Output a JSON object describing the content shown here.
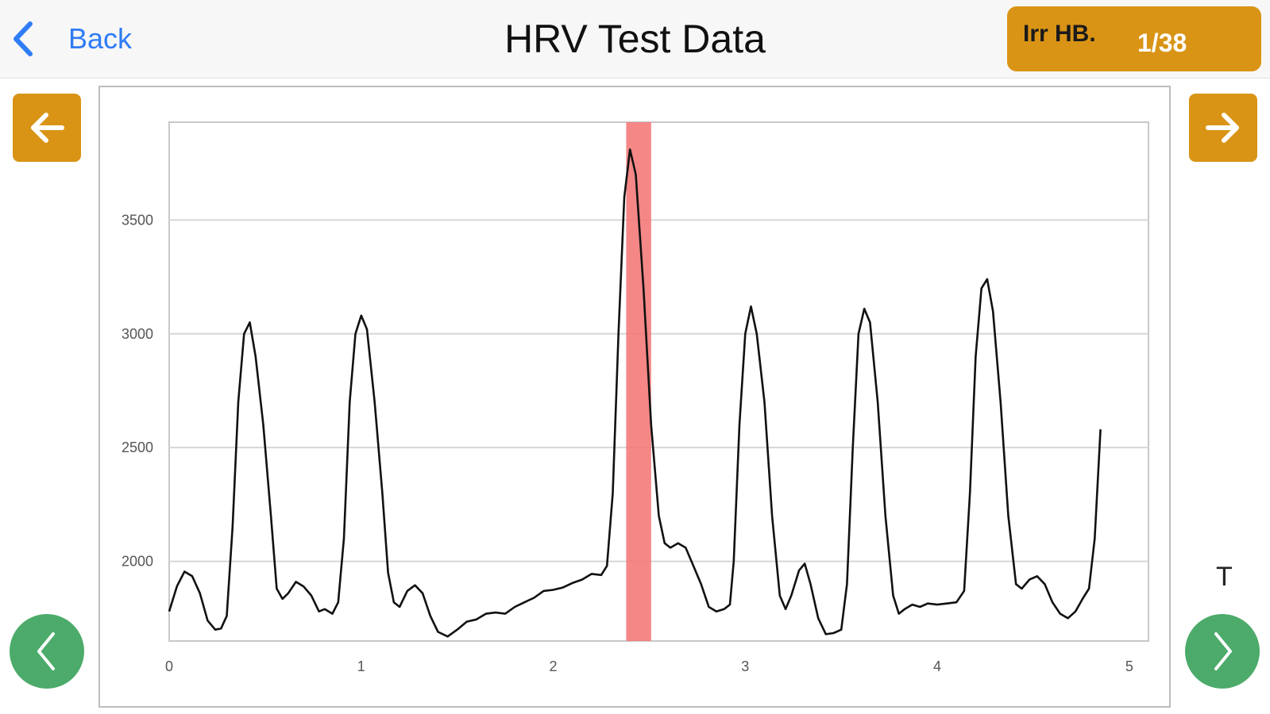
{
  "header": {
    "back_label": "Back",
    "title": "HRV Test Data",
    "irr_label": "Irr HB.",
    "irr_value": "1/38"
  },
  "overlay": {
    "t_label": "T"
  },
  "icons": {
    "back": "chevron-left-icon",
    "prev_square": "arrow-left-icon",
    "next_square": "arrow-right-icon",
    "prev_round": "chevron-left-icon",
    "next_round": "chevron-right-icon"
  },
  "colors": {
    "accent": "#d99416",
    "green": "#4cab6a",
    "link": "#2f7cf6",
    "highlight": "#f47a7a"
  },
  "chart_data": {
    "type": "line",
    "title": "",
    "xlabel": "",
    "ylabel": "",
    "xlim": [
      0,
      5.1
    ],
    "ylim": [
      1650,
      3930
    ],
    "x_ticks": [
      0,
      1,
      2,
      3,
      4,
      5
    ],
    "y_ticks": [
      2000,
      2500,
      3000,
      3500
    ],
    "grid": true,
    "highlight_band": [
      2.38,
      2.51
    ],
    "series": [
      {
        "points": [
          [
            0.0,
            1780
          ],
          [
            0.04,
            1890
          ],
          [
            0.08,
            1955
          ],
          [
            0.12,
            1935
          ],
          [
            0.16,
            1860
          ],
          [
            0.2,
            1740
          ],
          [
            0.24,
            1700
          ],
          [
            0.27,
            1705
          ],
          [
            0.3,
            1760
          ],
          [
            0.33,
            2150
          ],
          [
            0.36,
            2700
          ],
          [
            0.39,
            3000
          ],
          [
            0.42,
            3050
          ],
          [
            0.45,
            2900
          ],
          [
            0.49,
            2600
          ],
          [
            0.53,
            2200
          ],
          [
            0.56,
            1880
          ],
          [
            0.59,
            1835
          ],
          [
            0.62,
            1860
          ],
          [
            0.66,
            1910
          ],
          [
            0.7,
            1890
          ],
          [
            0.74,
            1850
          ],
          [
            0.78,
            1780
          ],
          [
            0.81,
            1790
          ],
          [
            0.85,
            1770
          ],
          [
            0.88,
            1820
          ],
          [
            0.91,
            2100
          ],
          [
            0.94,
            2700
          ],
          [
            0.97,
            3000
          ],
          [
            1.0,
            3080
          ],
          [
            1.03,
            3020
          ],
          [
            1.07,
            2700
          ],
          [
            1.11,
            2300
          ],
          [
            1.14,
            1950
          ],
          [
            1.17,
            1820
          ],
          [
            1.2,
            1800
          ],
          [
            1.24,
            1870
          ],
          [
            1.28,
            1895
          ],
          [
            1.32,
            1860
          ],
          [
            1.36,
            1760
          ],
          [
            1.4,
            1690
          ],
          [
            1.45,
            1670
          ],
          [
            1.5,
            1700
          ],
          [
            1.55,
            1735
          ],
          [
            1.6,
            1745
          ],
          [
            1.65,
            1770
          ],
          [
            1.7,
            1775
          ],
          [
            1.75,
            1770
          ],
          [
            1.8,
            1800
          ],
          [
            1.85,
            1820
          ],
          [
            1.9,
            1840
          ],
          [
            1.95,
            1870
          ],
          [
            2.0,
            1875
          ],
          [
            2.05,
            1885
          ],
          [
            2.1,
            1905
          ],
          [
            2.15,
            1920
          ],
          [
            2.2,
            1945
          ],
          [
            2.25,
            1940
          ],
          [
            2.28,
            1980
          ],
          [
            2.31,
            2300
          ],
          [
            2.34,
            3000
          ],
          [
            2.37,
            3600
          ],
          [
            2.4,
            3810
          ],
          [
            2.43,
            3700
          ],
          [
            2.47,
            3200
          ],
          [
            2.51,
            2600
          ],
          [
            2.55,
            2200
          ],
          [
            2.58,
            2080
          ],
          [
            2.61,
            2060
          ],
          [
            2.65,
            2080
          ],
          [
            2.69,
            2060
          ],
          [
            2.73,
            1980
          ],
          [
            2.77,
            1900
          ],
          [
            2.81,
            1800
          ],
          [
            2.85,
            1780
          ],
          [
            2.89,
            1790
          ],
          [
            2.92,
            1810
          ],
          [
            2.94,
            2000
          ],
          [
            2.97,
            2600
          ],
          [
            3.0,
            3000
          ],
          [
            3.03,
            3120
          ],
          [
            3.06,
            3000
          ],
          [
            3.1,
            2700
          ],
          [
            3.14,
            2200
          ],
          [
            3.18,
            1850
          ],
          [
            3.21,
            1790
          ],
          [
            3.24,
            1850
          ],
          [
            3.28,
            1960
          ],
          [
            3.31,
            1990
          ],
          [
            3.34,
            1900
          ],
          [
            3.38,
            1750
          ],
          [
            3.42,
            1680
          ],
          [
            3.46,
            1685
          ],
          [
            3.5,
            1700
          ],
          [
            3.53,
            1900
          ],
          [
            3.56,
            2500
          ],
          [
            3.59,
            3000
          ],
          [
            3.62,
            3110
          ],
          [
            3.65,
            3050
          ],
          [
            3.69,
            2700
          ],
          [
            3.73,
            2200
          ],
          [
            3.77,
            1850
          ],
          [
            3.8,
            1770
          ],
          [
            3.83,
            1790
          ],
          [
            3.87,
            1810
          ],
          [
            3.91,
            1800
          ],
          [
            3.95,
            1815
          ],
          [
            4.0,
            1810
          ],
          [
            4.05,
            1815
          ],
          [
            4.1,
            1820
          ],
          [
            4.14,
            1870
          ],
          [
            4.17,
            2300
          ],
          [
            4.2,
            2900
          ],
          [
            4.23,
            3200
          ],
          [
            4.26,
            3240
          ],
          [
            4.29,
            3100
          ],
          [
            4.33,
            2700
          ],
          [
            4.37,
            2200
          ],
          [
            4.41,
            1900
          ],
          [
            4.44,
            1880
          ],
          [
            4.48,
            1920
          ],
          [
            4.52,
            1935
          ],
          [
            4.56,
            1900
          ],
          [
            4.6,
            1820
          ],
          [
            4.64,
            1770
          ],
          [
            4.68,
            1750
          ],
          [
            4.72,
            1780
          ],
          [
            4.76,
            1840
          ],
          [
            4.79,
            1880
          ],
          [
            4.82,
            2100
          ],
          [
            4.85,
            2580
          ]
        ]
      }
    ]
  }
}
